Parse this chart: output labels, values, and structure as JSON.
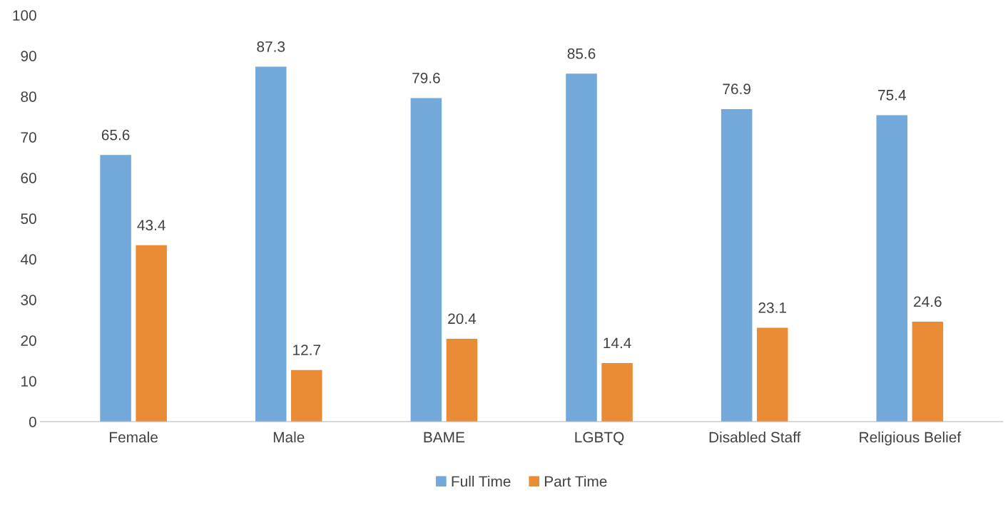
{
  "chart_data": {
    "type": "bar",
    "categories": [
      "Female",
      "Male",
      "BAME",
      "LGBTQ",
      "Disabled Staff",
      "Religious Belief"
    ],
    "series": [
      {
        "name": "Full Time",
        "color": "#72a8da",
        "values": [
          65.6,
          87.3,
          79.6,
          85.6,
          76.9,
          75.4
        ]
      },
      {
        "name": "Part Time",
        "color": "#ea8c35",
        "values": [
          43.4,
          12.7,
          20.4,
          14.4,
          23.1,
          24.6
        ]
      }
    ],
    "ylim": [
      0,
      100
    ],
    "yticks": [
      0,
      10,
      20,
      30,
      40,
      50,
      60,
      70,
      80,
      90,
      100
    ],
    "data_labels": true,
    "grid": false,
    "legend": "bottom"
  }
}
